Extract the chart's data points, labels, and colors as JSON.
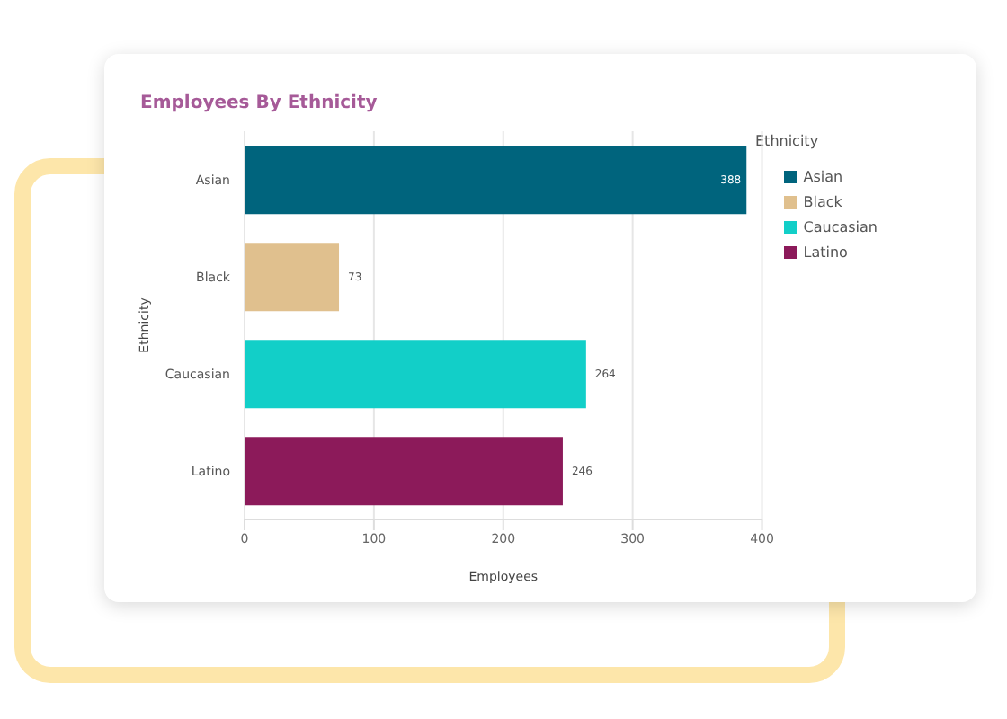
{
  "chart_data": {
    "type": "bar",
    "orientation": "horizontal",
    "stacked": true,
    "title": "Employees By Ethnicity",
    "xlabel": "Employees",
    "ylabel": "Ethnicity",
    "legend_title": "Ethnicity",
    "categories": [
      "Asian",
      "Black",
      "Caucasian",
      "Latino"
    ],
    "series": [
      {
        "name": "Asian",
        "color": "#00647d",
        "values": [
          388,
          null,
          null,
          null
        ]
      },
      {
        "name": "Black",
        "color": "#e0c08e",
        "values": [
          null,
          73,
          null,
          null
        ]
      },
      {
        "name": "Caucasian",
        "color": "#12cfc8",
        "values": [
          null,
          null,
          264,
          null
        ]
      },
      {
        "name": "Latino",
        "color": "#8c1a5a",
        "values": [
          null,
          null,
          null,
          246
        ]
      }
    ],
    "data_labels": true,
    "xlim": [
      0,
      400
    ],
    "xticks": [
      0,
      100,
      200,
      300,
      400
    ],
    "grid": "x",
    "legend": "right"
  }
}
